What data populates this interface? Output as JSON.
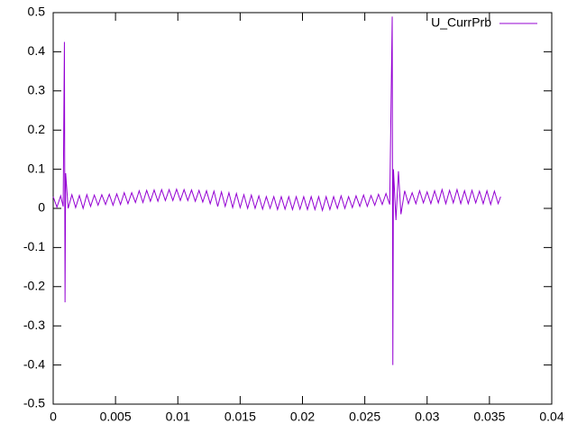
{
  "chart_data": {
    "type": "line",
    "x": [
      0,
      0.0003,
      0.0006,
      0.0008,
      0.0009,
      0.00095,
      0.001,
      0.0012,
      0.0015,
      0.0018,
      0.0021,
      0.0024,
      0.0027,
      0.003,
      0.0033,
      0.0036,
      0.0039,
      0.0042,
      0.0045,
      0.0048,
      0.0051,
      0.0054,
      0.0057,
      0.006,
      0.0063,
      0.0066,
      0.0069,
      0.0072,
      0.0075,
      0.0078,
      0.0081,
      0.0084,
      0.0087,
      0.009,
      0.0093,
      0.0096,
      0.0099,
      0.0102,
      0.0105,
      0.0108,
      0.0111,
      0.0114,
      0.0117,
      0.012,
      0.0123,
      0.0126,
      0.0129,
      0.0132,
      0.0135,
      0.0138,
      0.0141,
      0.0144,
      0.0147,
      0.015,
      0.0153,
      0.0156,
      0.0159,
      0.0162,
      0.0165,
      0.0168,
      0.0171,
      0.0174,
      0.0177,
      0.018,
      0.0183,
      0.0186,
      0.0189,
      0.0192,
      0.0195,
      0.0198,
      0.0201,
      0.0204,
      0.0207,
      0.021,
      0.0213,
      0.0216,
      0.0219,
      0.0222,
      0.0225,
      0.0228,
      0.0231,
      0.0234,
      0.0237,
      0.024,
      0.0243,
      0.0246,
      0.0249,
      0.0252,
      0.0255,
      0.0258,
      0.0261,
      0.0264,
      0.0267,
      0.027,
      0.0272,
      0.02725,
      0.0273,
      0.0275,
      0.0277,
      0.0279,
      0.0282,
      0.0285,
      0.0288,
      0.0291,
      0.0294,
      0.0297,
      0.03,
      0.0303,
      0.0306,
      0.0309,
      0.0312,
      0.0315,
      0.0318,
      0.0321,
      0.0324,
      0.0327,
      0.033,
      0.0333,
      0.0336,
      0.0339,
      0.0342,
      0.0345,
      0.0348,
      0.0351,
      0.0354,
      0.0357,
      0.0359
    ],
    "series": [
      {
        "name": "U_CurrPrb",
        "color": "#9400d3",
        "values": [
          0.03,
          0.003,
          0.032,
          0.005,
          0.425,
          -0.24,
          0.09,
          0.0,
          0.035,
          0.002,
          0.033,
          0.0,
          0.035,
          0.005,
          0.034,
          0.008,
          0.035,
          0.01,
          0.036,
          0.008,
          0.037,
          0.01,
          0.04,
          0.012,
          0.04,
          0.015,
          0.045,
          0.015,
          0.046,
          0.018,
          0.047,
          0.018,
          0.048,
          0.02,
          0.048,
          0.02,
          0.049,
          0.02,
          0.048,
          0.02,
          0.047,
          0.018,
          0.046,
          0.016,
          0.045,
          0.012,
          0.044,
          0.005,
          0.042,
          0.005,
          0.04,
          0.002,
          0.038,
          0.002,
          0.035,
          0.0,
          0.034,
          0.0,
          0.032,
          -0.002,
          0.03,
          0.0,
          0.03,
          -0.003,
          0.03,
          -0.002,
          0.03,
          -0.003,
          0.03,
          -0.002,
          0.03,
          -0.003,
          0.03,
          -0.003,
          0.03,
          -0.005,
          0.03,
          -0.003,
          0.03,
          0.0,
          0.032,
          0.0,
          0.03,
          0.002,
          0.032,
          0.005,
          0.034,
          0.005,
          0.033,
          0.008,
          0.036,
          0.01,
          0.038,
          0.01,
          0.49,
          -0.4,
          0.1,
          -0.03,
          0.095,
          -0.015,
          0.045,
          0.012,
          0.04,
          0.012,
          0.045,
          0.014,
          0.042,
          0.012,
          0.045,
          0.014,
          0.048,
          0.012,
          0.046,
          0.014,
          0.048,
          0.012,
          0.045,
          0.012,
          0.046,
          0.014,
          0.044,
          0.012,
          0.045,
          0.01,
          0.044,
          0.012,
          0.03
        ]
      }
    ],
    "xlim": [
      0,
      0.04
    ],
    "xticks": [
      0,
      0.005,
      0.01,
      0.015,
      0.02,
      0.025,
      0.03,
      0.035,
      0.04
    ],
    "ylim": [
      -0.5,
      0.5
    ],
    "yticks": [
      -0.5,
      -0.4,
      -0.3,
      -0.2,
      -0.1,
      0,
      0.1,
      0.2,
      0.3,
      0.4,
      0.5
    ],
    "legend": "top-right"
  }
}
